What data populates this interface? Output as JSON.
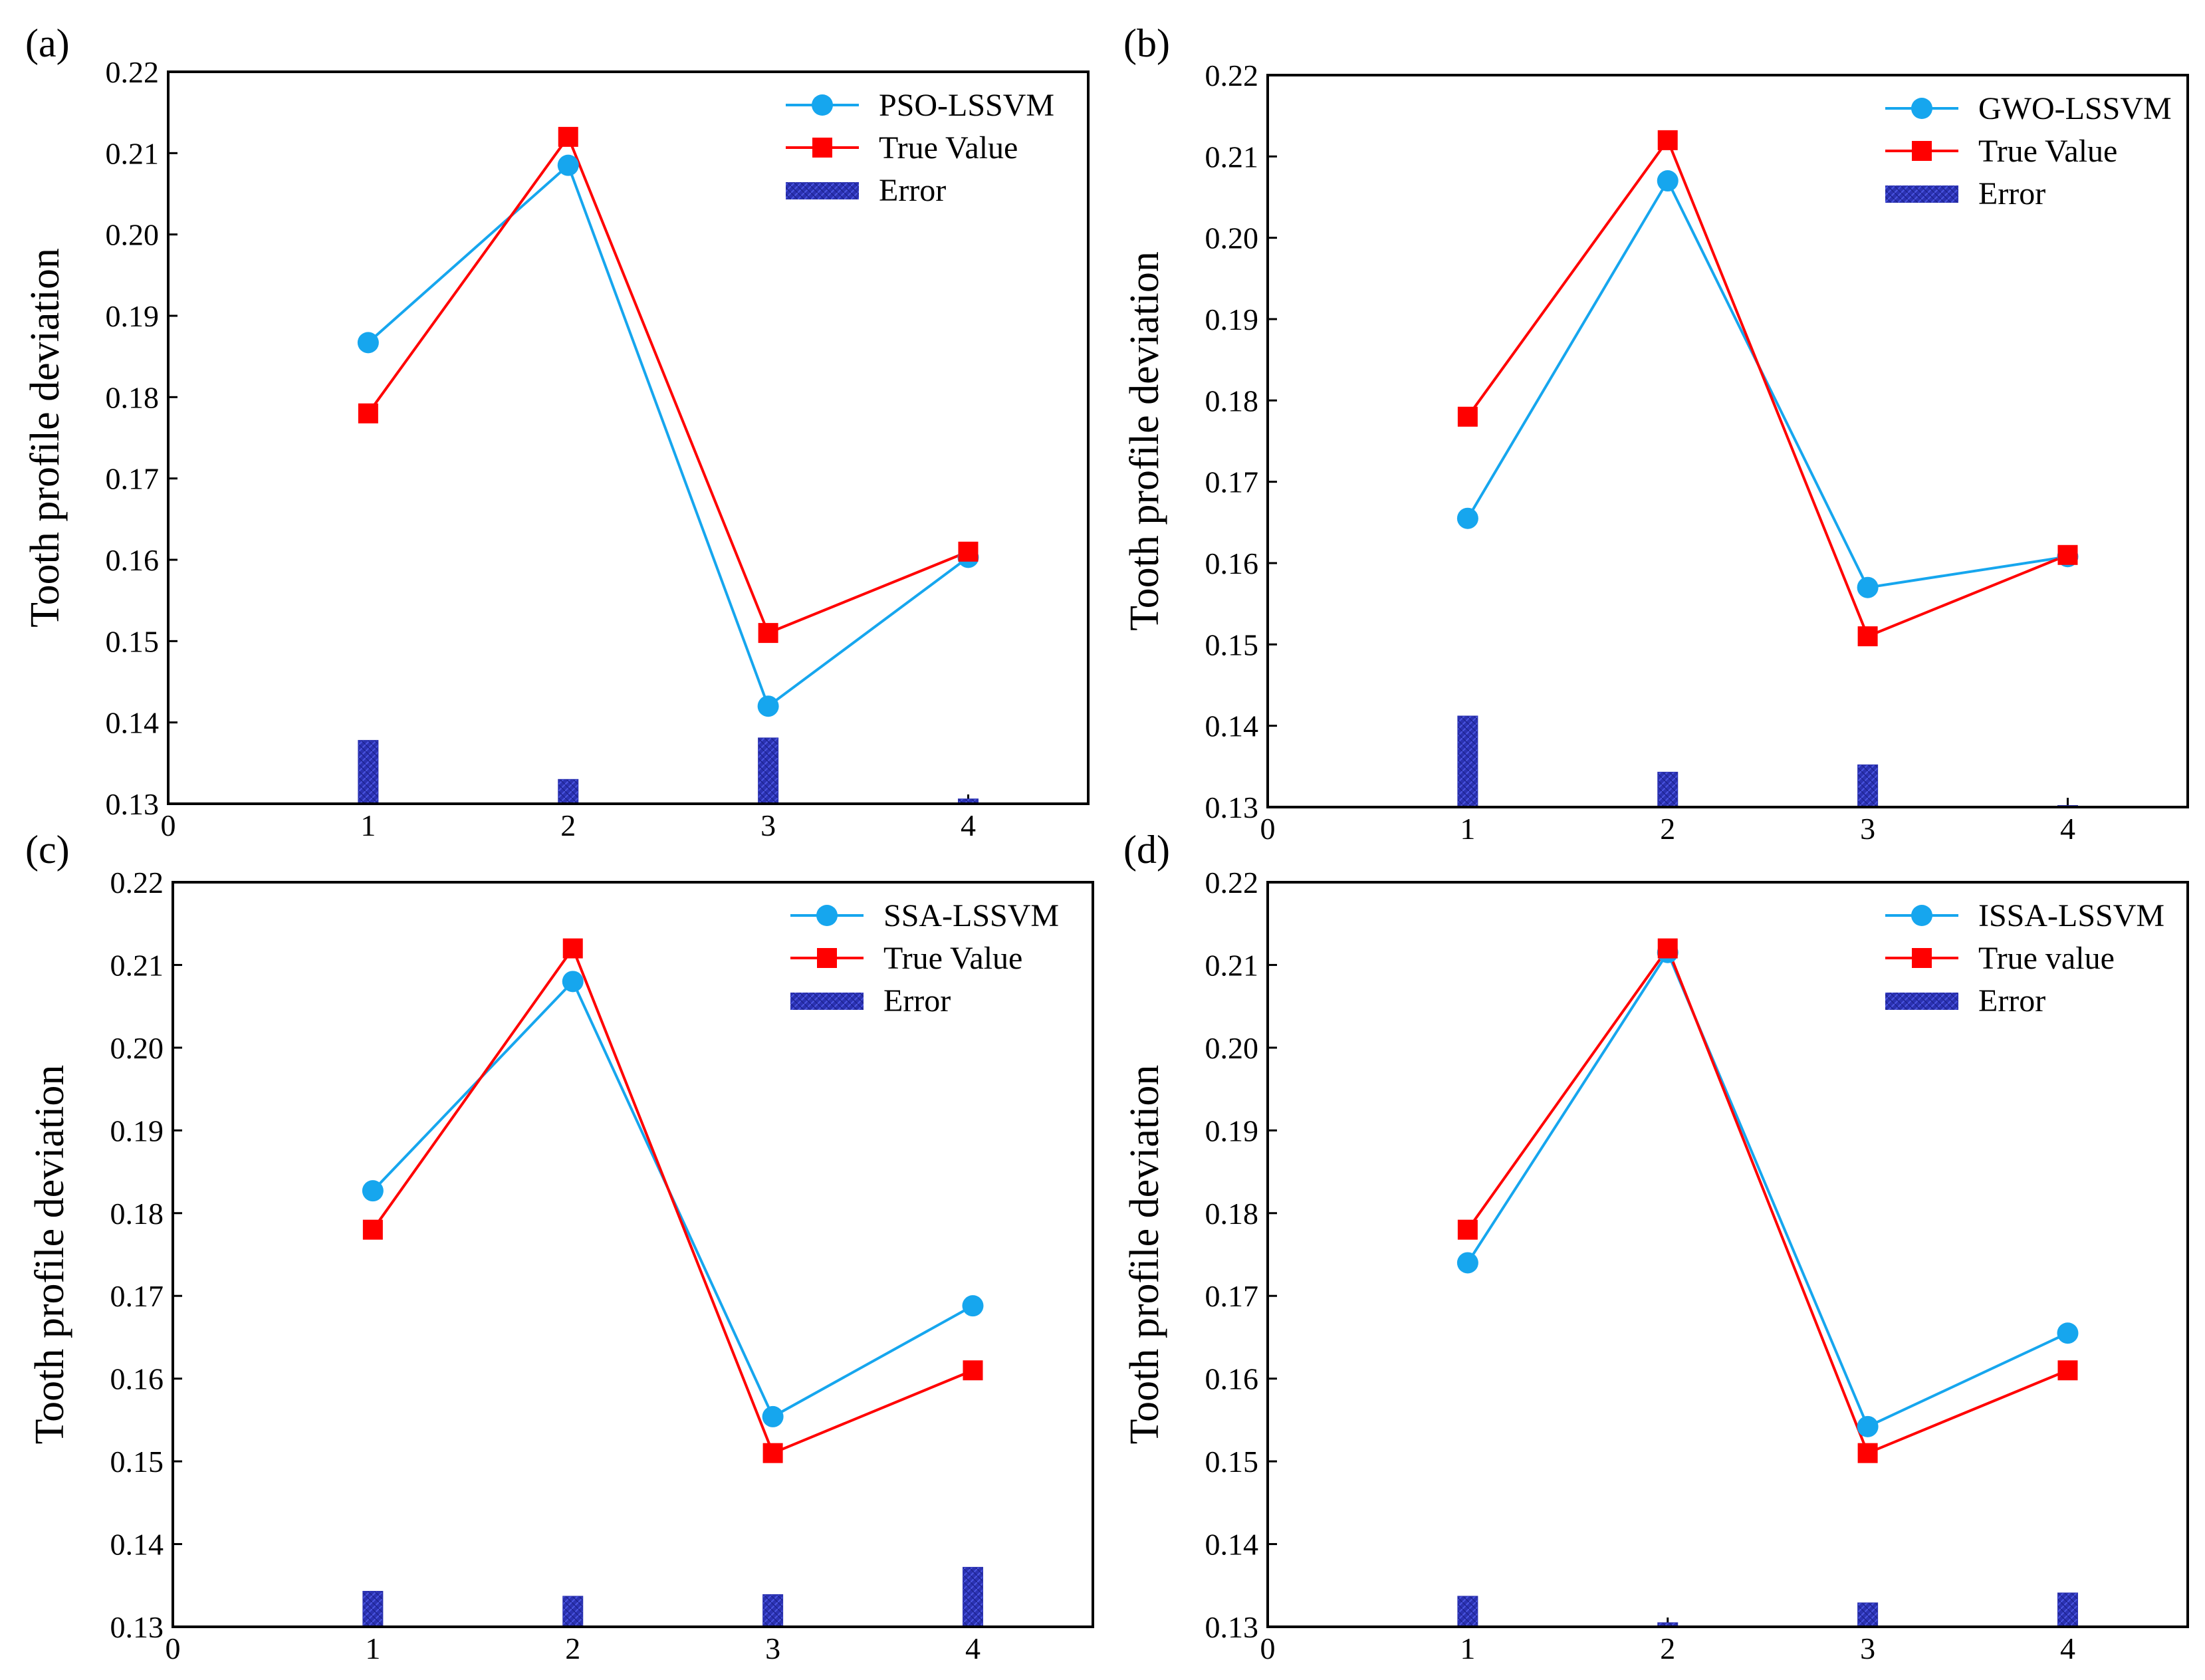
{
  "figure": {
    "colors": {
      "model": "#16a6ee",
      "true": "#ff0000",
      "error": "#2b32b2",
      "error_hatch": "#3d47d6",
      "axis": "#000000"
    },
    "marker_icons": {
      "model": "circle",
      "true": "square",
      "error": "hatched-bar"
    }
  },
  "chart_data": [
    {
      "panel_label": "(a)",
      "type": "line",
      "title": "",
      "xlabel": "",
      "ylabel": "Tooth profile deviation",
      "xlim": [
        0,
        4.6
      ],
      "ylim": [
        0.13,
        0.22
      ],
      "x_ticks": [
        "0",
        "1",
        "2",
        "3",
        "4"
      ],
      "y_ticks": [
        "0.13",
        "0.14",
        "0.15",
        "0.16",
        "0.17",
        "0.18",
        "0.19",
        "0.20",
        "0.21",
        "0.22"
      ],
      "legend_position": "top-right",
      "x": [
        1,
        2,
        3,
        4
      ],
      "series": [
        {
          "name": "PSO-LSSVM",
          "kind": "line-circle",
          "values": [
            0.1867,
            0.2085,
            0.142,
            0.1603
          ]
        },
        {
          "name": "True Value",
          "kind": "line-square",
          "values": [
            0.178,
            0.212,
            0.151,
            0.161
          ]
        },
        {
          "name": "Error",
          "kind": "bar",
          "values": [
            0.0078,
            0.003,
            0.0081,
            0.0006
          ]
        }
      ]
    },
    {
      "panel_label": "(b)",
      "type": "line",
      "title": "",
      "xlabel": "",
      "ylabel": "Tooth profile deviation",
      "xlim": [
        0,
        4.6
      ],
      "ylim": [
        0.13,
        0.22
      ],
      "x_ticks": [
        "0",
        "1",
        "2",
        "3",
        "4"
      ],
      "y_ticks": [
        "0.13",
        "0.14",
        "0.15",
        "0.16",
        "0.17",
        "0.18",
        "0.19",
        "0.20",
        "0.21",
        "0.22"
      ],
      "legend_position": "top-right",
      "x": [
        1,
        2,
        3,
        4
      ],
      "series": [
        {
          "name": "GWO-LSSVM",
          "kind": "line-circle",
          "values": [
            0.1655,
            0.207,
            0.157,
            0.1608
          ]
        },
        {
          "name": "True Value",
          "kind": "line-square",
          "values": [
            0.178,
            0.212,
            0.151,
            0.161
          ]
        },
        {
          "name": "Error",
          "kind": "bar",
          "values": [
            0.0112,
            0.0043,
            0.0052,
            0.0002
          ]
        }
      ]
    },
    {
      "panel_label": "(c)",
      "type": "line",
      "title": "",
      "xlabel": "",
      "ylabel": "Tooth profile deviation",
      "xlim": [
        0,
        4.6
      ],
      "ylim": [
        0.13,
        0.22
      ],
      "x_ticks": [
        "0",
        "1",
        "2",
        "3",
        "4"
      ],
      "y_ticks": [
        "0.13",
        "0.14",
        "0.15",
        "0.16",
        "0.17",
        "0.18",
        "0.19",
        "0.20",
        "0.21",
        "0.22"
      ],
      "legend_position": "top-right",
      "x": [
        1,
        2,
        3,
        4
      ],
      "series": [
        {
          "name": "SSA-LSSVM",
          "kind": "line-circle",
          "values": [
            0.1827,
            0.208,
            0.1554,
            0.1688
          ]
        },
        {
          "name": "True Value",
          "kind": "line-square",
          "values": [
            0.178,
            0.212,
            0.151,
            0.161
          ]
        },
        {
          "name": "Error",
          "kind": "bar",
          "values": [
            0.0043,
            0.0037,
            0.0039,
            0.0072
          ]
        }
      ]
    },
    {
      "panel_label": "(d)",
      "type": "line",
      "title": "",
      "xlabel": "",
      "ylabel": "Tooth profile deviation",
      "xlim": [
        0,
        4.6
      ],
      "ylim": [
        0.13,
        0.22
      ],
      "x_ticks": [
        "0",
        "1",
        "2",
        "3",
        "4"
      ],
      "y_ticks": [
        "0.13",
        "0.14",
        "0.15",
        "0.16",
        "0.17",
        "0.18",
        "0.19",
        "0.20",
        "0.21",
        "0.22"
      ],
      "legend_position": "top-right",
      "x": [
        1,
        2,
        3,
        4
      ],
      "series": [
        {
          "name": "ISSA-LSSVM",
          "kind": "line-circle",
          "values": [
            0.174,
            0.2115,
            0.1542,
            0.1655
          ]
        },
        {
          "name": "True value",
          "kind": "line-square",
          "values": [
            0.178,
            0.212,
            0.151,
            0.161
          ]
        },
        {
          "name": "Error",
          "kind": "bar",
          "values": [
            0.0037,
            0.0005,
            0.0029,
            0.0041
          ]
        }
      ]
    }
  ]
}
